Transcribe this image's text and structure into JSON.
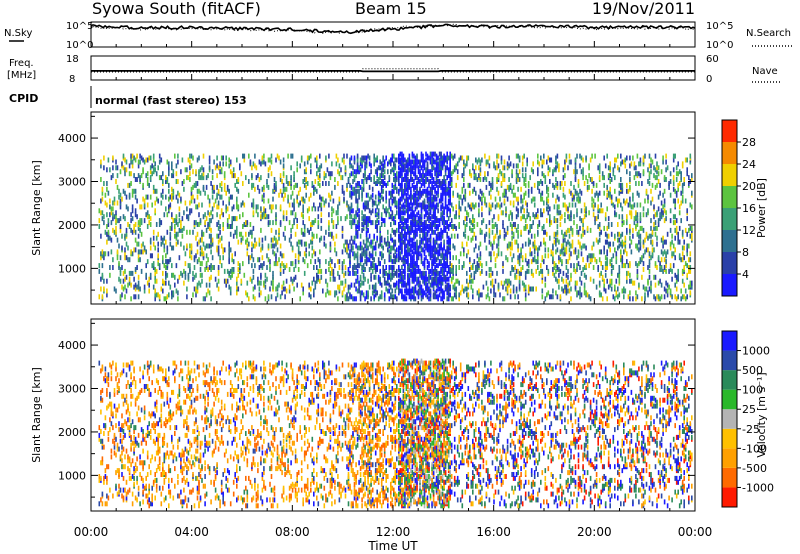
{
  "header": {
    "station": "Syowa South (fitACF)",
    "beam": "Beam 15",
    "date": "19/Nov/2011"
  },
  "noise_panel": {
    "left_label": "N.Sky",
    "right_label": "N.Search",
    "tick_top": "10^5",
    "tick_bottom": "10^0"
  },
  "freq_panel": {
    "left_label_1": "Freq.",
    "left_label_2": "[MHz]",
    "tick_top": "18",
    "tick_bottom": "8",
    "right_label": "Nave",
    "right_tick_top": "60",
    "right_tick_bottom": "0"
  },
  "cpid": {
    "label": "CPID",
    "value": "normal (fast stereo) 153"
  },
  "x_axis": {
    "title": "Time UT",
    "ticks": [
      "00:00",
      "04:00",
      "08:00",
      "12:00",
      "16:00",
      "20:00",
      "00:00"
    ]
  },
  "power_colorbar": {
    "title": "Power [dB]",
    "colors": [
      "#1a1aff",
      "#2a40a8",
      "#2e7090",
      "#3aa076",
      "#5cc440",
      "#f0d000",
      "#f58a00",
      "#ff2a00"
    ],
    "labels": [
      "4",
      "8",
      "12",
      "16",
      "20",
      "24",
      "28"
    ]
  },
  "velocity_colorbar": {
    "title": "Velocity [m s⁻¹]",
    "colors": [
      "#ff1a00",
      "#ff6a00",
      "#ffa000",
      "#ffc000",
      "#b4b4b4",
      "#2ab82a",
      "#2a8a5a",
      "#2a4aaa",
      "#1a1aff"
    ],
    "labels": [
      "-1000",
      "-500",
      "-100",
      "-25",
      "25",
      "100",
      "500",
      "1000"
    ]
  },
  "chart_data": [
    {
      "type": "line",
      "title": "",
      "ylabel": "N.Sky",
      "x": [
        0,
        2,
        4,
        6,
        8,
        10,
        12,
        14,
        16,
        18,
        20,
        22,
        24
      ],
      "series": [
        {
          "name": "N.Sky",
          "values": [
            4.2,
            3.8,
            3.9,
            3.7,
            3.5,
            2.9,
            3.6,
            4.3,
            4.0,
            4.2,
            3.9,
            4.0,
            3.9
          ]
        },
        {
          "name": "N.Search",
          "values": [
            4.0,
            3.6,
            3.7,
            3.5,
            3.3,
            2.7,
            3.8,
            4.4,
            4.2,
            4.0,
            3.7,
            3.8,
            3.7
          ]
        }
      ],
      "ylim": [
        0,
        5
      ],
      "xlim": [
        0,
        24
      ]
    },
    {
      "type": "line",
      "title": "",
      "ylabel": "Freq. [MHz]",
      "x": [
        0,
        10.7,
        10.8,
        13.8,
        13.9,
        24
      ],
      "series": [
        {
          "name": "Freq.",
          "values": [
            11.8,
            11.8,
            11.6,
            11.6,
            11.8,
            11.8
          ]
        },
        {
          "name": "Nave",
          "values": [
            20,
            20,
            28,
            28,
            20,
            20
          ]
        }
      ],
      "ylim": [
        8,
        18
      ],
      "xlim": [
        0,
        24
      ]
    },
    {
      "type": "heatmap",
      "title": "Power [dB]",
      "xlabel": "Time UT",
      "ylabel": "Slant Range [km]",
      "xlim": [
        0,
        24
      ],
      "ylim": [
        180,
        4600
      ],
      "yticks": [
        1000,
        2000,
        3000,
        4000
      ],
      "regions": [
        {
          "t0": 0.3,
          "t1": 10.2,
          "r0": 300,
          "r1": 3600,
          "density": 0.13,
          "value_mean": 14
        },
        {
          "t0": 10.2,
          "t1": 12.2,
          "r0": 300,
          "r1": 3600,
          "density": 0.25,
          "value_mean": 8
        },
        {
          "t0": 12.2,
          "t1": 14.3,
          "r0": 300,
          "r1": 3650,
          "density": 0.45,
          "value_mean": 5
        },
        {
          "t0": 14.3,
          "t1": 23.9,
          "r0": 300,
          "r1": 3600,
          "density": 0.15,
          "value_mean": 13
        }
      ]
    },
    {
      "type": "heatmap",
      "title": "Velocity [m s⁻¹]",
      "xlabel": "Time UT",
      "ylabel": "Slant Range [km]",
      "xlim": [
        0,
        24
      ],
      "ylim": [
        180,
        4600
      ],
      "yticks": [
        1000,
        2000,
        3000,
        4000
      ],
      "regions": [
        {
          "t0": 0.3,
          "t1": 10.2,
          "r0": 300,
          "r1": 3600,
          "density": 0.13,
          "value_mean": -100
        },
        {
          "t0": 10.2,
          "t1": 12.2,
          "r0": 300,
          "r1": 3600,
          "density": 0.25,
          "value_mean": -50
        },
        {
          "t0": 12.2,
          "t1": 14.3,
          "r0": 300,
          "r1": 3650,
          "density": 0.45,
          "value_mean": 0
        },
        {
          "t0": 14.3,
          "t1": 23.9,
          "r0": 300,
          "r1": 3600,
          "density": 0.15,
          "value_mean": 200
        }
      ]
    }
  ]
}
